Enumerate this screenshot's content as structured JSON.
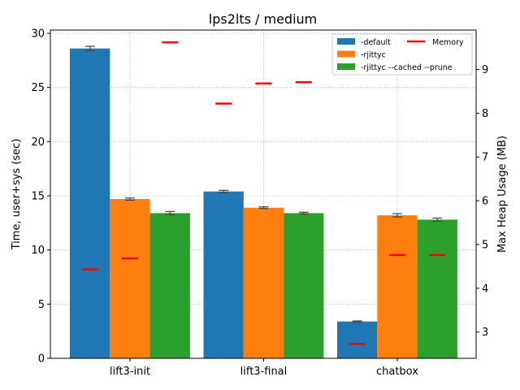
{
  "chart_data": {
    "type": "bar",
    "title": "lps2lts / medium",
    "xlabel": "",
    "ylabel": "Time, user+sys (sec)",
    "y2label": "Max Heap Usage (MB)",
    "categories": [
      "lift3-init",
      "lift3-final",
      "chatbox"
    ],
    "ylim": [
      0,
      30.3
    ],
    "yticks": [
      0,
      5,
      10,
      15,
      20,
      25,
      30
    ],
    "y2lim": [
      2.4,
      9.9
    ],
    "y2ticks": [
      3,
      4,
      5,
      6,
      7,
      8,
      9
    ],
    "grid": true,
    "legend_position": "top-right",
    "series": [
      {
        "name": "-default",
        "color": "#1f77b4",
        "values": [
          28.6,
          15.4,
          3.4
        ],
        "errors": [
          0.2,
          0.1,
          0.05
        ]
      },
      {
        "name": "-rjittyc",
        "color": "#ff7f0e",
        "values": [
          14.7,
          13.9,
          13.2
        ],
        "errors": [
          0.1,
          0.08,
          0.15
        ]
      },
      {
        "name": "-rjittyc --cached --prune",
        "color": "#2ca02c",
        "values": [
          13.4,
          13.4,
          12.8
        ],
        "errors": [
          0.15,
          0.08,
          0.15
        ]
      }
    ],
    "memory": {
      "name": "Memory",
      "color": "#ff0000",
      "values": [
        [
          4.43,
          4.68,
          9.62
        ],
        [
          8.22,
          8.68,
          8.71
        ],
        [
          2.73,
          4.76,
          4.76
        ]
      ]
    }
  }
}
